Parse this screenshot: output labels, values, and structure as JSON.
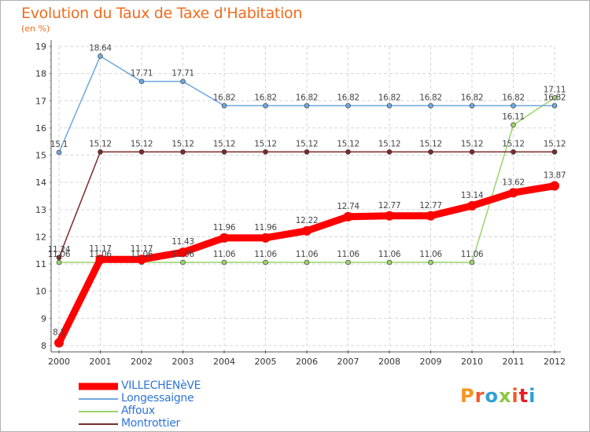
{
  "title": "Evolution du Taux de Taxe d'Habitation",
  "unit": "(en %)",
  "logo": {
    "text": "Proxiti",
    "colors": [
      "#f7941d",
      "#f15a29",
      "#2e9fd8",
      "#8dc63f",
      "#f15a29",
      "#ed1c24",
      "#2e9fd8"
    ]
  },
  "chart_data": {
    "type": "line",
    "x": [
      "2000",
      "2001",
      "2002",
      "2003",
      "2004",
      "2005",
      "2006",
      "2007",
      "2008",
      "2009",
      "2010",
      "2011",
      "2012"
    ],
    "ylim": [
      8,
      19
    ],
    "yticks": [
      8,
      9,
      10,
      11,
      12,
      13,
      14,
      15,
      16,
      17,
      18,
      19
    ],
    "grid": true,
    "series": [
      {
        "name": "VILLECHENèVE",
        "color": "#ff0000",
        "values": [
          8.1,
          11.17,
          11.17,
          11.43,
          11.96,
          11.96,
          12.22,
          12.74,
          12.77,
          12.77,
          13.14,
          13.62,
          13.87
        ],
        "labels": [
          "8.1",
          "11.17",
          "11.17",
          "11.43",
          "11.96",
          "11.96",
          "12.22",
          "12.74",
          "12.77",
          "12.77",
          "13.14",
          "13.62",
          "13.87"
        ]
      },
      {
        "name": "Longessaigne",
        "color": "#6fa8dc",
        "values": [
          15.1,
          18.64,
          17.71,
          17.71,
          16.82,
          16.82,
          16.82,
          16.82,
          16.82,
          16.82,
          16.82,
          16.82,
          16.82
        ],
        "labels": [
          "15.1",
          "18.64",
          "17.71",
          "17.71",
          "16.82",
          "16.82",
          "16.82",
          "16.82",
          "16.82",
          "16.82",
          "16.82",
          "16.82",
          "16.82"
        ]
      },
      {
        "name": "Affoux",
        "color": "#9bd36b",
        "values": [
          11.06,
          11.06,
          11.06,
          11.06,
          11.06,
          11.06,
          11.06,
          11.06,
          11.06,
          11.06,
          11.06,
          16.11,
          17.11
        ],
        "labels": [
          "11.06",
          "11.06",
          "11.06",
          "11.06",
          "11.06",
          "11.06",
          "11.06",
          "11.06",
          "11.06",
          "11.06",
          "11.06",
          "16.11",
          "17.11"
        ]
      },
      {
        "name": "Montrottier",
        "color": "#7b2a2a",
        "values": [
          11.24,
          15.12,
          15.12,
          15.12,
          15.12,
          15.12,
          15.12,
          15.12,
          15.12,
          15.12,
          15.12,
          15.12,
          15.12
        ],
        "labels": [
          "11.24",
          "15.12",
          "15.12",
          "15.12",
          "15.12",
          "15.12",
          "15.12",
          "15.12",
          "15.12",
          "15.12",
          "15.12",
          "15.12",
          "15.12"
        ]
      }
    ]
  }
}
